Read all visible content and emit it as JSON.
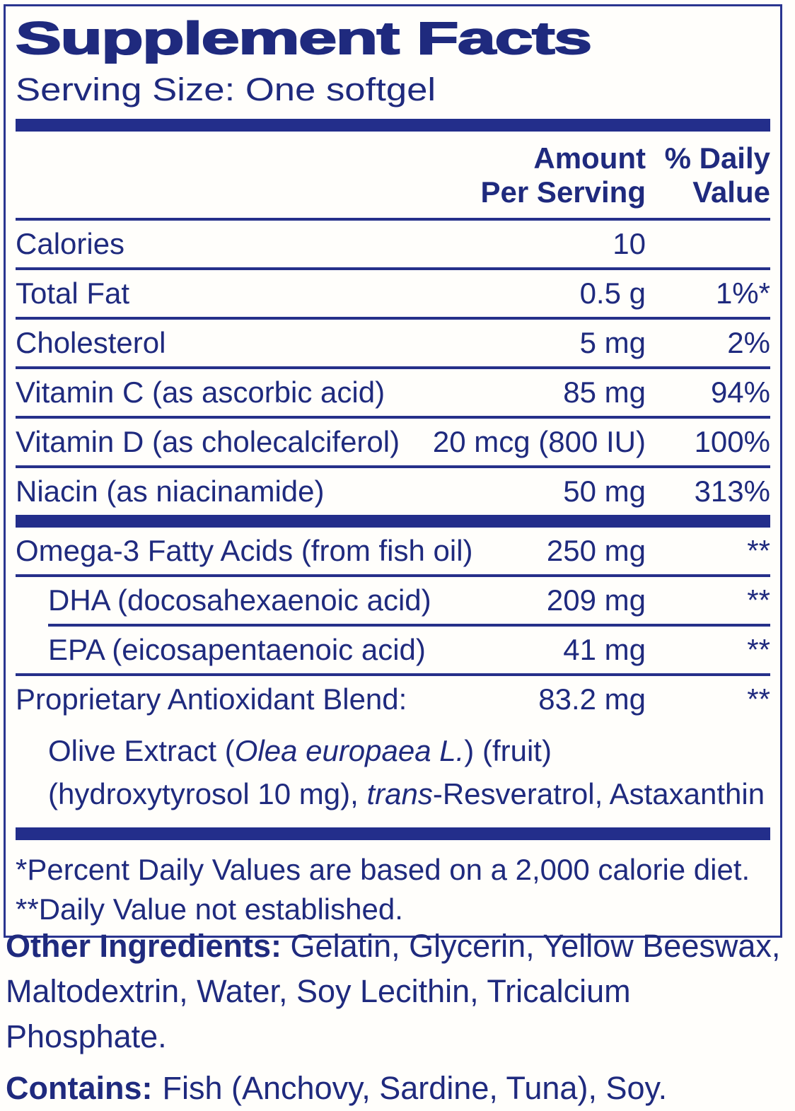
{
  "colors": {
    "text_navy": "#1f2a7e",
    "bar_blue": "#232e8b",
    "border_blue": "#2a3590",
    "background": "#fffefb"
  },
  "panel": {
    "title": "Supplement Facts",
    "serving_size": "Serving Size: One softgel",
    "columns": {
      "amount_line1": "Amount",
      "amount_line2": "Per Serving",
      "dv_line1": "% Daily",
      "dv_line2": "Value"
    },
    "rows": [
      {
        "name": "Calories",
        "amount": "10",
        "dv": ""
      },
      {
        "name": "Total Fat",
        "amount": "0.5 g",
        "dv": "1%*"
      },
      {
        "name": "Cholesterol",
        "amount": "5 mg",
        "dv": "2%"
      },
      {
        "name": "Vitamin C (as ascorbic acid)",
        "amount": "85 mg",
        "dv": "94%"
      },
      {
        "name": "Vitamin D (as cholecalciferol)",
        "amount": "20 mcg (800 IU)",
        "dv": "100%"
      },
      {
        "name": "Niacin (as niacinamide)",
        "amount": "50 mg",
        "dv": "313%"
      },
      {
        "name": "Omega-3 Fatty Acids (from fish oil)",
        "amount": "250 mg",
        "dv": "**"
      },
      {
        "name": "DHA (docosahexaenoic acid)",
        "amount": "209 mg",
        "dv": "**"
      },
      {
        "name": "EPA (eicosapentaenoic acid)",
        "amount": "41 mg",
        "dv": "**"
      },
      {
        "name": "Proprietary Antioxidant Blend:",
        "amount": "83.2 mg",
        "dv": "**"
      }
    ],
    "blend_details": {
      "line1_pre": "Olive Extract (",
      "line1_italic": "Olea europaea L.",
      "line1_post": ") (fruit)",
      "line2_pre": "(hydroxytyrosol 10 mg), ",
      "line2_italic": "trans",
      "line2_post": "-Resveratrol, Astaxanthin"
    },
    "footnotes": [
      "*Percent Daily Values are based on a 2,000 calorie diet.",
      "**Daily Value not established."
    ]
  },
  "other_ingredients": {
    "label": "Other Ingredients:",
    "line1_rest": " Gelatin, Glycerin, Yellow Beeswax,",
    "line2": "Maltodextrin, Water, Soy Lecithin, Tricalcium Phosphate."
  },
  "contains": {
    "label": "Contains:",
    "rest": "Fish (Anchovy, Sardine, Tuna), Soy."
  }
}
